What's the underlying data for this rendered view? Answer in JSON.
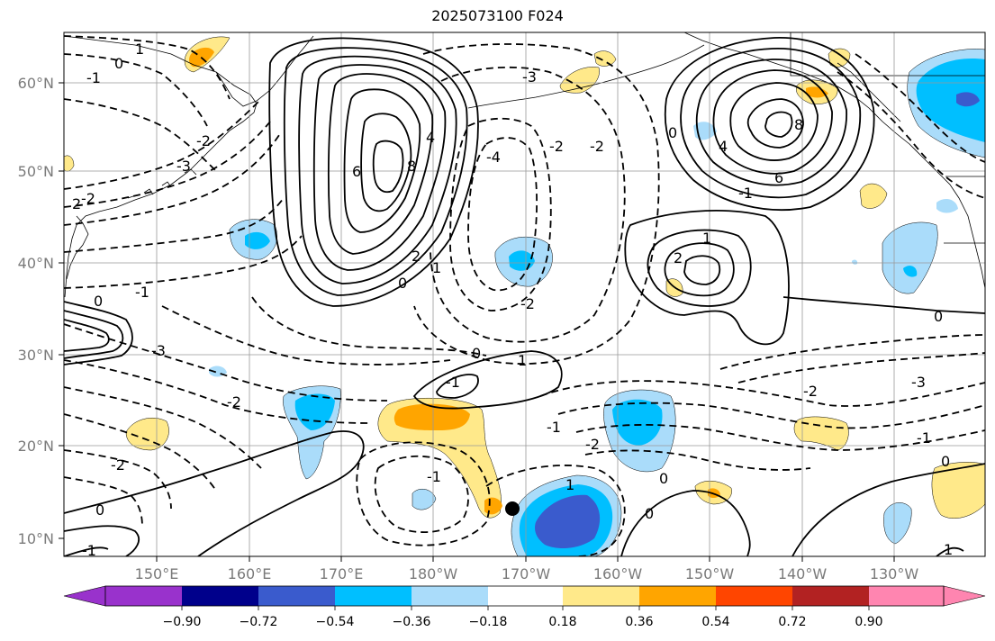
{
  "title": "2025073100 F024",
  "map": {
    "lat_labels": [
      "60°N",
      "50°N",
      "40°N",
      "30°N",
      "20°N",
      "10°N"
    ],
    "lon_labels": [
      "150°E",
      "160°E",
      "170°E",
      "180°W",
      "170°W",
      "160°W",
      "150°W",
      "140°W",
      "130°W"
    ],
    "storm_marker": {
      "lon": "170°W",
      "lat": "13°N"
    },
    "contour_labels": [
      "0",
      "1",
      "-1",
      "-2",
      "-3",
      "2",
      "-2",
      "-1",
      "0",
      "8",
      "6",
      "4",
      "2",
      "1",
      "0",
      "-3",
      "-2",
      "-2",
      "0",
      "-4",
      "4",
      "6",
      "8",
      "2",
      "1",
      "-1",
      "0",
      "-2",
      "-2",
      "-3",
      "-1",
      "0",
      "-2",
      "-1",
      "1",
      "0",
      "-1",
      "1",
      "-2",
      "-1",
      "0",
      "0",
      "-2",
      "-3",
      "-1",
      "1",
      "0"
    ]
  },
  "colorbar": {
    "colors": [
      "#9932cc",
      "#00008b",
      "#3a5bcd",
      "#00bfff",
      "#aadcfa",
      "#ffffff",
      "#ffe98a",
      "#ffa500",
      "#ff4500",
      "#b22222",
      "#ff85b0"
    ],
    "tick_labels": [
      "−0.90",
      "−0.72",
      "−0.54",
      "−0.36",
      "−0.18",
      "0.18",
      "0.36",
      "0.54",
      "0.72",
      "0.90"
    ]
  }
}
